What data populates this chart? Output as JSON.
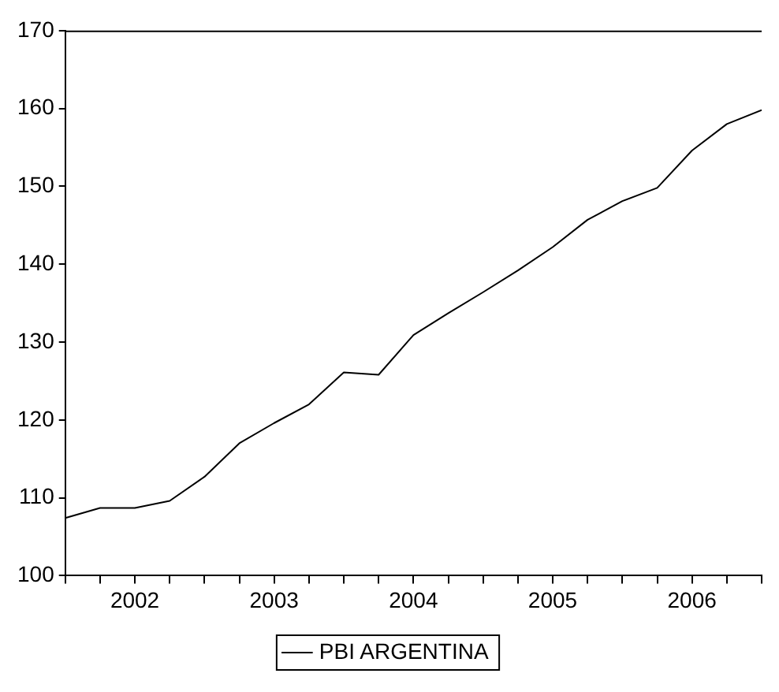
{
  "chart_data": {
    "type": "line",
    "x": [
      2002,
      2002.25,
      2002.5,
      2002.75,
      2003,
      2003.25,
      2003.5,
      2003.75,
      2004,
      2004.25,
      2004.5,
      2004.75,
      2005,
      2005.25,
      2005.5,
      2005.75,
      2006,
      2006.25,
      2006.5,
      2006.75,
      2007
    ],
    "series": [
      {
        "name": "PBI ARGENTINA",
        "color": "#000000",
        "values": [
          107.4,
          108.7,
          108.7,
          109.6,
          112.7,
          117.0,
          119.6,
          122.0,
          126.1,
          125.8,
          130.9,
          133.7,
          136.4,
          139.2,
          142.2,
          145.7,
          148.1,
          149.8,
          154.6,
          158.0,
          159.8
        ]
      }
    ],
    "xlim": [
      2002,
      2007
    ],
    "xticks": [
      {
        "value": 2002,
        "label": null
      },
      {
        "value": 2002.25,
        "label": null
      },
      {
        "value": 2002.5,
        "label": "2002"
      },
      {
        "value": 2002.75,
        "label": null
      },
      {
        "value": 2003,
        "label": null
      },
      {
        "value": 2003.25,
        "label": null
      },
      {
        "value": 2003.5,
        "label": "2003"
      },
      {
        "value": 2003.75,
        "label": null
      },
      {
        "value": 2004,
        "label": null
      },
      {
        "value": 2004.25,
        "label": null
      },
      {
        "value": 2004.5,
        "label": "2004"
      },
      {
        "value": 2004.75,
        "label": null
      },
      {
        "value": 2005,
        "label": null
      },
      {
        "value": 2005.25,
        "label": null
      },
      {
        "value": 2005.5,
        "label": "2005"
      },
      {
        "value": 2005.75,
        "label": null
      },
      {
        "value": 2006,
        "label": null
      },
      {
        "value": 2006.25,
        "label": null
      },
      {
        "value": 2006.5,
        "label": "2006"
      },
      {
        "value": 2006.75,
        "label": null
      },
      {
        "value": 2007,
        "label": null
      }
    ],
    "ylim": [
      100,
      170
    ],
    "yticks": [
      100,
      110,
      120,
      130,
      140,
      150,
      160,
      170
    ],
    "grid": false,
    "legend": "bottom",
    "marker": "none",
    "line_style": "solid"
  }
}
